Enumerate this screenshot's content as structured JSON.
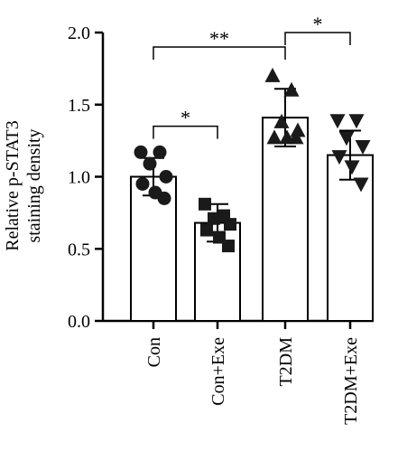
{
  "chart_data": {
    "type": "bar",
    "title": "",
    "ylabel": [
      "Relative p-STAT3",
      "staining density"
    ],
    "xlabel": "",
    "ylim": [
      0,
      2.0
    ],
    "yticks": [
      "0.0",
      "0.5",
      "1.0",
      "1.5",
      "2.0"
    ],
    "grid": false,
    "error_bars": "SD",
    "categories": [
      "Con",
      "Con+Exe",
      "T2DM",
      "T2DM+Exe"
    ],
    "means": [
      1.0,
      0.68,
      1.41,
      1.15
    ],
    "errors": [
      0.13,
      0.13,
      0.2,
      0.17
    ],
    "markers": [
      "circle",
      "square",
      "triangle-up",
      "triangle-down"
    ],
    "points": [
      [
        1.17,
        1.17,
        1.09,
        1.0,
        0.95,
        0.89,
        0.85
      ],
      [
        0.81,
        0.73,
        0.71,
        0.67,
        0.63,
        0.58,
        0.52
      ],
      [
        1.7,
        1.6,
        1.38,
        1.32,
        1.27,
        1.27,
        1.27
      ],
      [
        1.39,
        1.39,
        1.27,
        1.21,
        1.14,
        1.07,
        0.95
      ]
    ],
    "significance": [
      {
        "from": 0,
        "to": 1,
        "label": "*",
        "y": 1.35
      },
      {
        "from": 0,
        "to": 2,
        "label": "**",
        "y": 1.9
      },
      {
        "from": 2,
        "to": 3,
        "label": "*",
        "y": 2.0
      }
    ],
    "colors": {
      "bar_fill": "#ffffff",
      "stroke": "#000000",
      "marker": "#1a1a1a"
    }
  }
}
